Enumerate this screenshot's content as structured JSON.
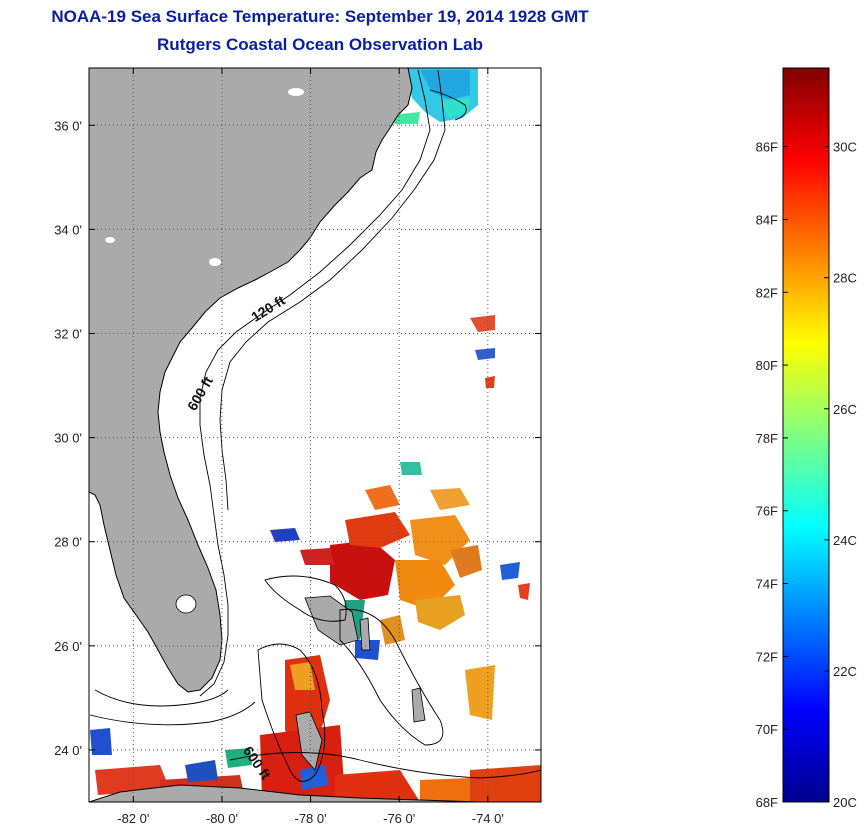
{
  "header": {
    "title": "NOAA-19 Sea Surface Temperature:  September 19, 2014 1928 GMT",
    "subtitle": "Rutgers Coastal Ocean Observation Lab"
  },
  "map": {
    "lon_ticks": [
      "-82 0'",
      "-80 0'",
      "-78 0'",
      "-76 0'",
      "-74 0'"
    ],
    "lon_values": [
      -82,
      -80,
      -78,
      -76,
      -74
    ],
    "lat_ticks": [
      "36 0'",
      "34 0'",
      "32 0'",
      "30 0'",
      "28 0'",
      "26 0'",
      "24 0'"
    ],
    "lat_values": [
      36,
      34,
      32,
      30,
      28,
      26,
      24
    ],
    "lon_range": [
      -83.0,
      -72.8
    ],
    "lat_range": [
      23.0,
      37.1
    ],
    "contour_labels": [
      {
        "text": "120 ft",
        "lon": -78.9,
        "lat": 32.4
      },
      {
        "text": "600 ft",
        "lon": -80.4,
        "lat": 30.8
      },
      {
        "text": "600 ft",
        "lon": -79.3,
        "lat": 23.7
      }
    ],
    "colors": {
      "land": "#aaaaaa",
      "grid": "#555555",
      "frame": "#000000"
    }
  },
  "colorbar": {
    "f_labels": [
      "86F",
      "84F",
      "82F",
      "80F",
      "78F",
      "76F",
      "74F",
      "72F",
      "70F",
      "68F"
    ],
    "f_values": [
      86,
      84,
      82,
      80,
      78,
      76,
      74,
      72,
      70,
      68
    ],
    "c_labels": [
      "30C",
      "28C",
      "26C",
      "24C",
      "22C",
      "20C"
    ],
    "c_values": [
      30,
      28,
      26,
      24,
      22,
      20
    ],
    "range_c": [
      20,
      31.2
    ],
    "stops": [
      "#00008f",
      "#0000ff",
      "#0080ff",
      "#00ffff",
      "#80ff80",
      "#ffff00",
      "#ff8000",
      "#ff0000",
      "#800000"
    ]
  }
}
